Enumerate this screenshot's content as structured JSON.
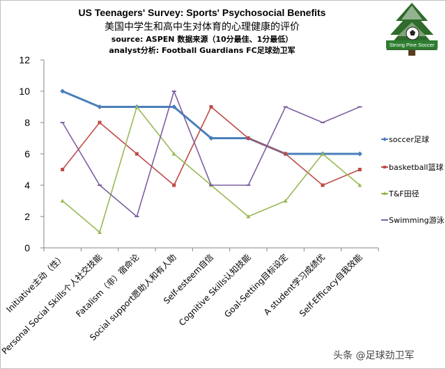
{
  "header": {
    "title": "US Teenagers' Survey: Sports' Psychosocial Benefits",
    "title_zh": "美国中学生和高中生对体育的心理健康的评价",
    "source": "source: ASPEN  数据来源（10分最佳、1分最低）",
    "analyst": "analyst分析: Football Guardians FC足球劲卫军"
  },
  "logo": {
    "text": "Strong Pine Soccer",
    "icon": "pine-tree-soccer-ball-logo"
  },
  "watermark": "头条 @足球劲卫军",
  "chart_data": {
    "type": "line",
    "title": "US Teenagers' Survey: Sports' Psychosocial Benefits",
    "categories": [
      "Initiative主动（性）",
      "Personal Social Skills个人社交技能",
      "Fatalism（非）宿命论",
      "Social support愿助人和有人助",
      "Self-esteem自信",
      "Cognitive Skills认知技能",
      "Goal-Setting目标设定",
      "A student学习成绩优",
      "Self-Efficacy自我效能"
    ],
    "series": [
      {
        "name": "soccer足球",
        "color": "#4a7ebb",
        "values": [
          10,
          9,
          9,
          9,
          7,
          7,
          6,
          6,
          6
        ]
      },
      {
        "name": "basketball篮球",
        "color": "#be4b48",
        "values": [
          5,
          8,
          6,
          4,
          9,
          7,
          6,
          4,
          5
        ]
      },
      {
        "name": "T&F田径",
        "color": "#98b954",
        "values": [
          3,
          1,
          9,
          6,
          4,
          2,
          3,
          6,
          4
        ]
      },
      {
        "name": "Swimming游泳",
        "color": "#7d60a0",
        "values": [
          8,
          4,
          2,
          10,
          4,
          4,
          9,
          8,
          9
        ]
      }
    ],
    "ylim": [
      0,
      12
    ],
    "yticks": [
      0,
      2,
      4,
      6,
      8,
      10,
      12
    ],
    "grid": false,
    "legend": "right"
  }
}
